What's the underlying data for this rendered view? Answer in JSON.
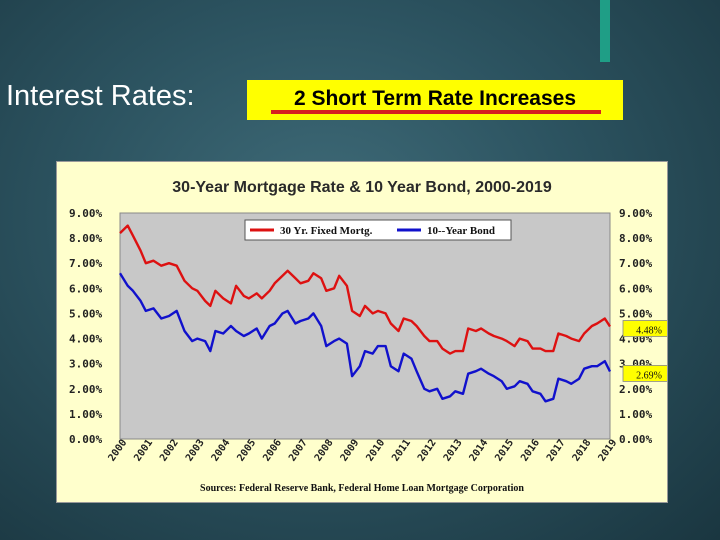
{
  "slide": {
    "title": "Interest Rates:",
    "banner": "2 Short Term Rate Increases"
  },
  "colors": {
    "panel_bg": "#ffffcc",
    "plot_bg": "#c8c8c8",
    "mortgage": "#dd1111",
    "bond": "#1111cc",
    "banner": "#ffff00",
    "accent": "#1f9e86"
  },
  "chart_data": {
    "type": "line",
    "title": "30-Year Mortgage Rate & 10 Year Bond, 2000-2019",
    "source": "Sources:  Federal Reserve Bank, Federal Home Loan Mortgage Corporation",
    "xlabel": "",
    "ylabel": "",
    "xlim": [
      2000,
      2019
    ],
    "ylim": [
      0,
      9
    ],
    "y_ticks": [
      "0.00%",
      "1.00%",
      "2.00%",
      "3.00%",
      "4.00%",
      "5.00%",
      "6.00%",
      "7.00%",
      "8.00%",
      "9.00%"
    ],
    "x_ticks": [
      "2000",
      "2001",
      "2002",
      "2003",
      "2004",
      "2005",
      "2006",
      "2007",
      "2008",
      "2009",
      "2010",
      "2011",
      "2012",
      "2013",
      "2014",
      "2015",
      "2016",
      "2017",
      "2018",
      "2019"
    ],
    "grid": false,
    "legend": "top-center",
    "series": [
      {
        "name": "30 Yr. Fixed Mortg.",
        "color": "#dd1111",
        "x": [
          2000.0,
          2000.3,
          2000.5,
          2000.8,
          2001.0,
          2001.3,
          2001.6,
          2001.9,
          2002.2,
          2002.5,
          2002.8,
          2003.0,
          2003.3,
          2003.5,
          2003.7,
          2004.0,
          2004.3,
          2004.5,
          2004.8,
          2005.0,
          2005.3,
          2005.5,
          2005.8,
          2006.0,
          2006.3,
          2006.5,
          2006.8,
          2007.0,
          2007.3,
          2007.5,
          2007.8,
          2008.0,
          2008.3,
          2008.5,
          2008.8,
          2009.0,
          2009.3,
          2009.5,
          2009.8,
          2010.0,
          2010.3,
          2010.5,
          2010.8,
          2011.0,
          2011.3,
          2011.5,
          2011.8,
          2012.0,
          2012.3,
          2012.5,
          2012.8,
          2013.0,
          2013.3,
          2013.5,
          2013.8,
          2014.0,
          2014.3,
          2014.5,
          2014.8,
          2015.0,
          2015.3,
          2015.5,
          2015.8,
          2016.0,
          2016.3,
          2016.5,
          2016.8,
          2017.0,
          2017.3,
          2017.5,
          2017.8,
          2018.0,
          2018.3,
          2018.5,
          2018.8,
          2019.0
        ],
        "values": [
          8.2,
          8.5,
          8.1,
          7.5,
          7.0,
          7.1,
          6.9,
          7.0,
          6.9,
          6.3,
          6.0,
          5.9,
          5.5,
          5.3,
          5.9,
          5.6,
          5.4,
          6.1,
          5.7,
          5.6,
          5.8,
          5.6,
          5.9,
          6.2,
          6.5,
          6.7,
          6.4,
          6.2,
          6.3,
          6.6,
          6.4,
          5.9,
          6.0,
          6.5,
          6.1,
          5.1,
          4.9,
          5.3,
          5.0,
          5.1,
          5.0,
          4.6,
          4.3,
          4.8,
          4.7,
          4.5,
          4.1,
          3.9,
          3.9,
          3.6,
          3.4,
          3.5,
          3.5,
          4.4,
          4.3,
          4.4,
          4.2,
          4.1,
          4.0,
          3.9,
          3.7,
          4.0,
          3.9,
          3.6,
          3.6,
          3.5,
          3.5,
          4.2,
          4.1,
          4.0,
          3.9,
          4.2,
          4.5,
          4.6,
          4.8,
          4.48
        ],
        "end_label": "4.48%"
      },
      {
        "name": "10--Year Bond",
        "color": "#1111cc",
        "x": [
          2000.0,
          2000.3,
          2000.5,
          2000.8,
          2001.0,
          2001.3,
          2001.6,
          2001.9,
          2002.2,
          2002.5,
          2002.8,
          2003.0,
          2003.3,
          2003.5,
          2003.7,
          2004.0,
          2004.3,
          2004.5,
          2004.8,
          2005.0,
          2005.3,
          2005.5,
          2005.8,
          2006.0,
          2006.3,
          2006.5,
          2006.8,
          2007.0,
          2007.3,
          2007.5,
          2007.8,
          2008.0,
          2008.3,
          2008.5,
          2008.8,
          2009.0,
          2009.3,
          2009.5,
          2009.8,
          2010.0,
          2010.3,
          2010.5,
          2010.8,
          2011.0,
          2011.3,
          2011.5,
          2011.8,
          2012.0,
          2012.3,
          2012.5,
          2012.8,
          2013.0,
          2013.3,
          2013.5,
          2013.8,
          2014.0,
          2014.3,
          2014.5,
          2014.8,
          2015.0,
          2015.3,
          2015.5,
          2015.8,
          2016.0,
          2016.3,
          2016.5,
          2016.8,
          2017.0,
          2017.3,
          2017.5,
          2017.8,
          2018.0,
          2018.3,
          2018.5,
          2018.8,
          2019.0
        ],
        "values": [
          6.6,
          6.1,
          5.9,
          5.5,
          5.1,
          5.2,
          4.8,
          4.9,
          5.1,
          4.3,
          3.9,
          4.0,
          3.9,
          3.5,
          4.3,
          4.2,
          4.5,
          4.3,
          4.1,
          4.2,
          4.4,
          4.0,
          4.5,
          4.6,
          5.0,
          5.1,
          4.6,
          4.7,
          4.8,
          5.0,
          4.5,
          3.7,
          3.9,
          4.0,
          3.8,
          2.5,
          2.9,
          3.5,
          3.4,
          3.7,
          3.7,
          2.9,
          2.7,
          3.4,
          3.2,
          2.7,
          2.0,
          1.9,
          2.0,
          1.6,
          1.7,
          1.9,
          1.8,
          2.6,
          2.7,
          2.8,
          2.6,
          2.5,
          2.3,
          2.0,
          2.1,
          2.3,
          2.2,
          1.9,
          1.8,
          1.5,
          1.6,
          2.4,
          2.3,
          2.2,
          2.4,
          2.8,
          2.9,
          2.9,
          3.1,
          2.69
        ],
        "end_label": "2.69%"
      }
    ]
  }
}
